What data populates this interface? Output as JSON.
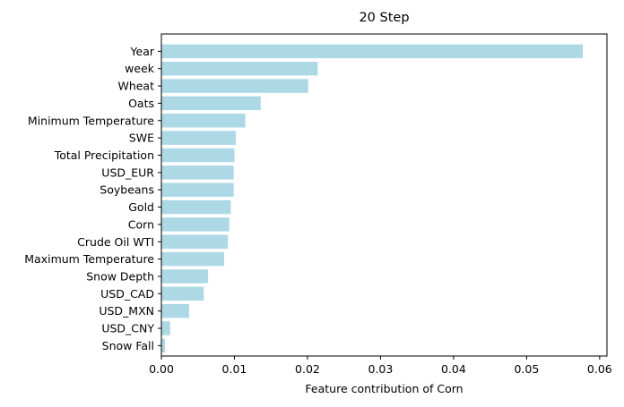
{
  "chart_data": {
    "type": "bar",
    "orientation": "horizontal",
    "title": "20 Step",
    "xlabel": "Feature contribution of Corn",
    "ylabel": "",
    "xlim": [
      0.0,
      0.061
    ],
    "xticks": [
      0.0,
      0.01,
      0.02,
      0.03,
      0.04,
      0.05,
      0.06
    ],
    "xtick_labels": [
      "0.00",
      "0.01",
      "0.02",
      "0.03",
      "0.04",
      "0.05",
      "0.06"
    ],
    "bar_color": "#add8e6",
    "categories": [
      "Year",
      "week",
      "Wheat",
      "Oats",
      "Minimum Temperature",
      "SWE",
      "Total Precipitation",
      "USD_EUR",
      "Soybeans",
      "Gold",
      "Corn",
      "Crude Oil WTI",
      "Maximum Temperature",
      "Snow Depth",
      "USD_CAD",
      "USD_MXN",
      "USD_CNY",
      "Snow Fall"
    ],
    "values": [
      0.0577,
      0.0214,
      0.0201,
      0.0136,
      0.0115,
      0.0102,
      0.01,
      0.0099,
      0.0099,
      0.0095,
      0.0093,
      0.0091,
      0.0086,
      0.0064,
      0.0058,
      0.0038,
      0.0012,
      0.0005
    ]
  }
}
